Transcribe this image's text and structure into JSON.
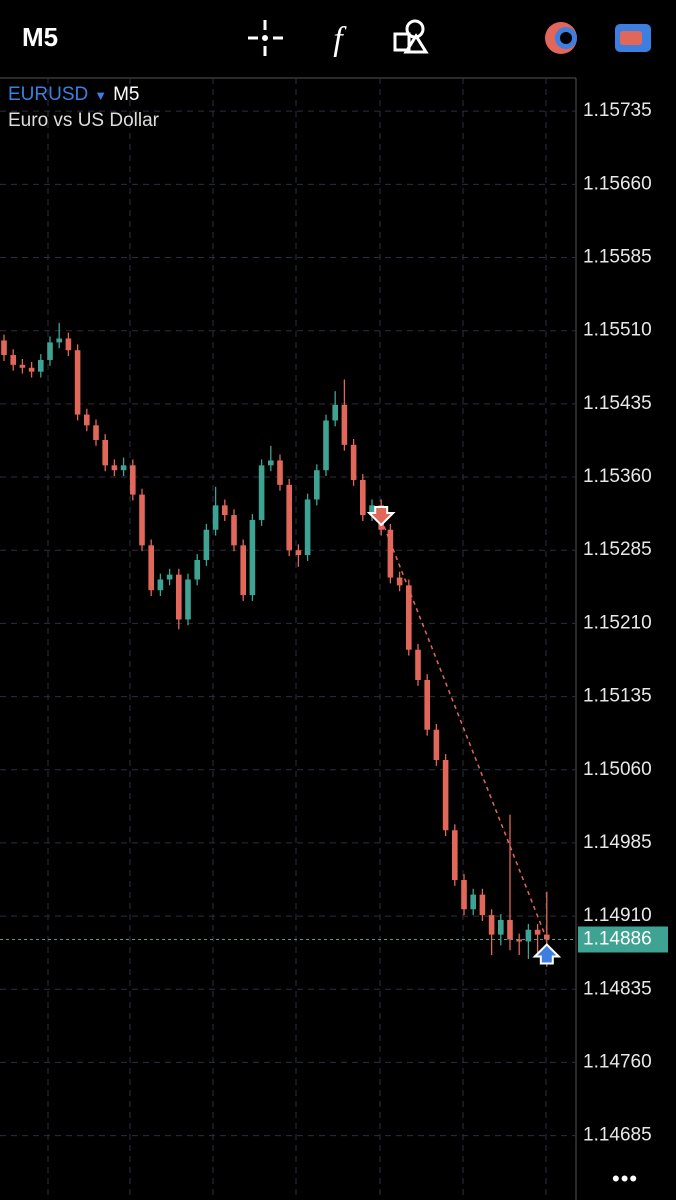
{
  "toolbar": {
    "timeframe": "M5"
  },
  "chart_data": {
    "type": "candlestick",
    "symbol": "EURUSD",
    "timeframe": "M5",
    "description": "Euro vs US Dollar",
    "open": [
      1.155,
      1.15485,
      1.15475,
      1.15472,
      1.15468,
      1.1548,
      1.15498,
      1.15502,
      1.1549,
      1.15424,
      1.15413,
      1.15398,
      1.15372,
      1.15367,
      1.15372,
      1.15342,
      1.1529,
      1.15244,
      1.15255,
      1.1526,
      1.15214,
      1.15255,
      1.15275,
      1.15306,
      1.15331,
      1.15321,
      1.1529,
      1.15239,
      1.15316,
      1.15372,
      1.15377,
      1.15352,
      1.15285,
      1.1528,
      1.15337,
      1.15367,
      1.15418,
      1.15434,
      1.15393,
      1.15357,
      1.15321,
      1.15331,
      1.15306,
      1.15257,
      1.15249,
      1.15183,
      1.15152,
      1.15101,
      1.1507,
      1.14998,
      1.14947,
      1.14917,
      1.14932,
      1.14911,
      1.14891,
      1.14906,
      1.14886,
      1.14884,
      1.14896,
      1.14891
    ],
    "high": [
      1.15506,
      1.15491,
      1.15481,
      1.15478,
      1.15486,
      1.15504,
      1.15518,
      1.15508,
      1.15496,
      1.1543,
      1.15419,
      1.15404,
      1.15378,
      1.1538,
      1.15378,
      1.15348,
      1.15296,
      1.15261,
      1.15266,
      1.15266,
      1.15261,
      1.15281,
      1.15312,
      1.1535,
      1.15337,
      1.15327,
      1.15296,
      1.15322,
      1.15378,
      1.15392,
      1.15383,
      1.15358,
      1.15291,
      1.15343,
      1.15373,
      1.15424,
      1.15448,
      1.1546,
      1.15399,
      1.15363,
      1.15337,
      1.15337,
      1.15312,
      1.15263,
      1.15255,
      1.15189,
      1.15158,
      1.15107,
      1.15076,
      1.15004,
      1.14953,
      1.14938,
      1.14938,
      1.14917,
      1.14912,
      1.15014,
      1.14892,
      1.14902,
      1.14902,
      1.14935
    ],
    "low": [
      1.15479,
      1.15469,
      1.15466,
      1.15462,
      1.15462,
      1.15474,
      1.15492,
      1.15484,
      1.15418,
      1.15407,
      1.15392,
      1.15366,
      1.15361,
      1.15361,
      1.15336,
      1.15284,
      1.15238,
      1.15238,
      1.15249,
      1.15204,
      1.15208,
      1.15249,
      1.15269,
      1.153,
      1.15315,
      1.15284,
      1.15233,
      1.15233,
      1.1531,
      1.15366,
      1.15346,
      1.15279,
      1.15268,
      1.15274,
      1.15331,
      1.15361,
      1.15412,
      1.15387,
      1.15351,
      1.15315,
      1.15315,
      1.153,
      1.15251,
      1.15243,
      1.15177,
      1.15146,
      1.15095,
      1.15064,
      1.14992,
      1.14941,
      1.14911,
      1.14911,
      1.14905,
      1.1487,
      1.1488,
      1.14875,
      1.1487,
      1.14866,
      1.1487,
      1.14858
    ],
    "close": [
      1.15485,
      1.15475,
      1.15472,
      1.15468,
      1.1548,
      1.15498,
      1.15502,
      1.1549,
      1.15424,
      1.15413,
      1.15398,
      1.15372,
      1.15367,
      1.15372,
      1.15342,
      1.1529,
      1.15244,
      1.15255,
      1.1526,
      1.15214,
      1.15255,
      1.15275,
      1.15306,
      1.15331,
      1.15321,
      1.1529,
      1.15239,
      1.15316,
      1.15372,
      1.15377,
      1.15352,
      1.15285,
      1.1528,
      1.15337,
      1.15367,
      1.15418,
      1.15434,
      1.15393,
      1.15357,
      1.15321,
      1.15331,
      1.15306,
      1.15257,
      1.15249,
      1.15183,
      1.15152,
      1.15101,
      1.1507,
      1.14998,
      1.14947,
      1.14917,
      1.14932,
      1.14911,
      1.14891,
      1.14906,
      1.14886,
      1.14884,
      1.14896,
      1.14891,
      1.14886
    ],
    "up_color": "#3fa393",
    "down_color": "#e2675b",
    "ylim": [
      1.14619,
      1.15769
    ],
    "yticks": [
      1.15735,
      {
        "value": 1.1566,
        "label": "1.15660"
      },
      1.15585,
      {
        "value": 1.1551,
        "label": "1.15510"
      },
      1.15435,
      {
        "value": 1.1536,
        "label": "1.15360"
      },
      1.15285,
      {
        "value": 1.1521,
        "label": "1.15210"
      },
      1.15135,
      {
        "value": 1.1506,
        "label": "1.15060"
      },
      1.14985,
      {
        "value": 1.1491,
        "label": "1.14910"
      },
      1.14835,
      {
        "value": 1.1476,
        "label": "1.14760"
      },
      1.14685
    ],
    "grid": true,
    "current_price": 1.14886,
    "trades": [
      {
        "type": "sell",
        "index": 41,
        "price": 1.15317
      },
      {
        "type": "buy",
        "index": 59,
        "price": 1.14886
      }
    ]
  },
  "more_label": "•••"
}
